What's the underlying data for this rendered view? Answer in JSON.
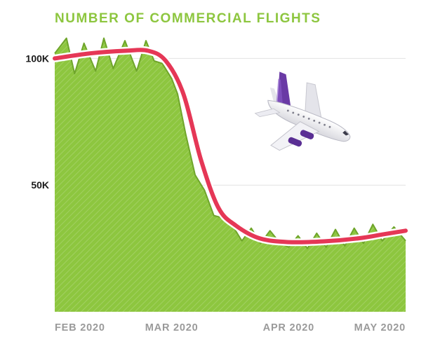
{
  "chart_data": {
    "type": "area",
    "title": "NUMBER OF COMMERCIAL FLIGHTS",
    "xlabel": "",
    "ylabel": "",
    "x_ticks": [
      "FEB 2020",
      "MAR 2020",
      "APR 2020",
      "MAY 2020"
    ],
    "y_ticks": [
      {
        "label": "100K",
        "value": 100000
      },
      {
        "label": "50K",
        "value": 50000
      }
    ],
    "ylim": [
      0,
      112000
    ],
    "xlim": [
      0,
      3
    ],
    "grid": true,
    "series": [
      {
        "name": "daily flights",
        "style": "jagged area",
        "x": [
          0,
          0.1,
          0.17,
          0.25,
          0.35,
          0.42,
          0.5,
          0.6,
          0.7,
          0.78,
          0.85,
          0.92,
          1.0,
          1.05,
          1.12,
          1.2,
          1.28,
          1.36,
          1.44,
          1.52,
          1.6,
          1.68,
          1.76,
          1.84,
          1.92,
          2.0,
          2.08,
          2.16,
          2.24,
          2.32,
          2.4,
          2.48,
          2.56,
          2.64,
          2.72,
          2.8,
          2.9,
          3.0
        ],
        "values": [
          102000,
          108000,
          94000,
          106000,
          95000,
          108000,
          96000,
          107000,
          95000,
          107000,
          99000,
          98000,
          92000,
          86000,
          70000,
          54000,
          48000,
          38000,
          37000,
          34000,
          28000,
          33000,
          27000,
          32000,
          27500,
          25500,
          30000,
          25000,
          31000,
          25500,
          32500,
          26000,
          33000,
          27000,
          34500,
          28000,
          33500,
          28000
        ]
      },
      {
        "name": "trend",
        "style": "smoothed line",
        "x": [
          0,
          0.3,
          0.6,
          0.8,
          0.95,
          1.1,
          1.25,
          1.4,
          1.55,
          1.75,
          2.0,
          2.3,
          2.6,
          2.8,
          3.0
        ],
        "values": [
          100000,
          102000,
          103000,
          103000,
          99000,
          86000,
          60000,
          41000,
          34000,
          29000,
          27500,
          27800,
          29000,
          30500,
          32000
        ]
      }
    ],
    "colors": {
      "title": "#8dc63f",
      "area": "#8dc63f",
      "area_dark": "#6fa52b",
      "trend": "#e53756",
      "axis_label": "#1a1a1a",
      "x_label": "#9a9a9a",
      "grid": "#e2e2e2",
      "plane_body": "#f4f4f6",
      "plane_tail": "#6a3aa5"
    },
    "decoration": "airplane-illustration"
  }
}
